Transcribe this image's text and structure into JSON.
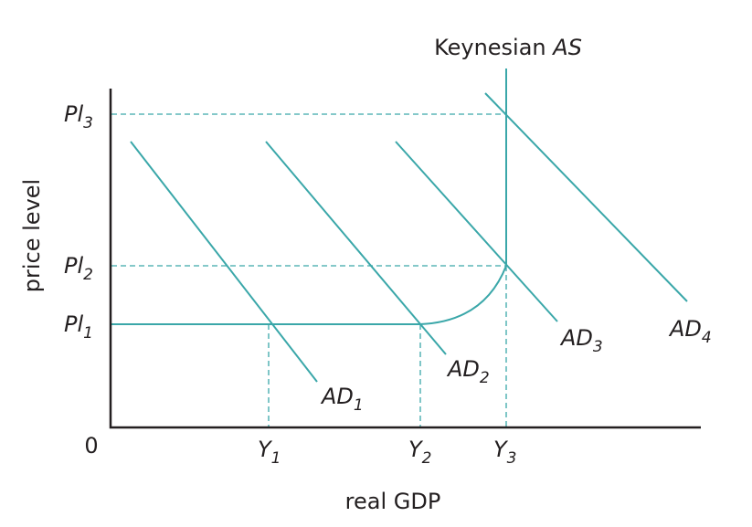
{
  "diagram": {
    "axis_labels": {
      "y": "price level",
      "x": "real GDP",
      "origin": "0"
    },
    "y_levels": [
      {
        "base": "Pl",
        "sub": "3"
      },
      {
        "base": "Pl",
        "sub": "2"
      },
      {
        "base": "Pl",
        "sub": "1"
      }
    ],
    "x_levels": [
      {
        "base": "Y",
        "sub": "1"
      },
      {
        "base": "Y",
        "sub": "2"
      },
      {
        "base": "Y",
        "sub": "3"
      }
    ],
    "supply_curve": {
      "prefix": "Keynesian",
      "symbol": "AS"
    },
    "demand_curves": [
      {
        "base": "AD",
        "sub": "1"
      },
      {
        "base": "AD",
        "sub": "2"
      },
      {
        "base": "AD",
        "sub": "3"
      },
      {
        "base": "AD",
        "sub": "4"
      }
    ]
  }
}
